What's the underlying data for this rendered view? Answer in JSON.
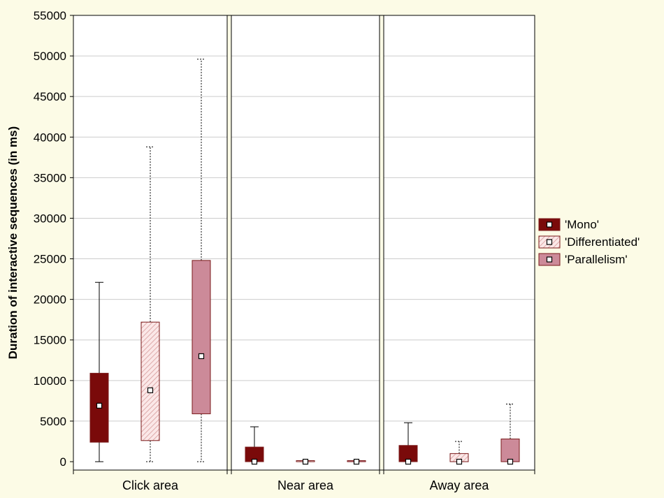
{
  "chart_data": {
    "type": "boxplot",
    "title": "",
    "xlabel": "",
    "ylabel": "Duration of interactive sequences (in ms)",
    "ylim": [
      -1000,
      55000
    ],
    "yticks": [
      0,
      5000,
      10000,
      15000,
      20000,
      25000,
      30000,
      35000,
      40000,
      45000,
      50000,
      55000
    ],
    "categories": [
      "Click area",
      "Near area",
      "Away area"
    ],
    "grid": true,
    "legend_position": "right",
    "series": [
      {
        "name": "'Mono'",
        "fill": "#7a0a0a",
        "pattern": "solid",
        "whisker_style": "solid",
        "boxes": [
          {
            "min": 0,
            "q1": 2400,
            "median": 6900,
            "q3": 10900,
            "max": 22100
          },
          {
            "min": 0,
            "q1": 0,
            "median": 0,
            "q3": 1800,
            "max": 4300
          },
          {
            "min": 0,
            "q1": 0,
            "median": 0,
            "q3": 2000,
            "max": 4800
          }
        ]
      },
      {
        "name": "'Differentiated'",
        "fill": "#f6dada",
        "pattern": "hatch",
        "whisker_style": "dotted",
        "boxes": [
          {
            "min": 0,
            "q1": 2600,
            "median": 8800,
            "q3": 17200,
            "max": 38800
          },
          {
            "min": 0,
            "q1": 0,
            "median": 0,
            "q3": 0,
            "max": 0
          },
          {
            "min": 0,
            "q1": 0,
            "median": 0,
            "q3": 1000,
            "max": 2500
          }
        ]
      },
      {
        "name": "'Parallelism'",
        "fill": "#cc8a99",
        "pattern": "solid",
        "whisker_style": "dotted",
        "boxes": [
          {
            "min": 0,
            "q1": 5900,
            "median": 13000,
            "q3": 24800,
            "max": 49600
          },
          {
            "min": 0,
            "q1": 0,
            "median": 0,
            "q3": 0,
            "max": 0
          },
          {
            "min": 0,
            "q1": 0,
            "median": 0,
            "q3": 2800,
            "max": 7100
          }
        ]
      }
    ]
  },
  "colors": {
    "background": "#fcfbe6",
    "plot_background": "#ffffff",
    "gridline": "#cccccc",
    "outline": "#7a1a1a"
  }
}
